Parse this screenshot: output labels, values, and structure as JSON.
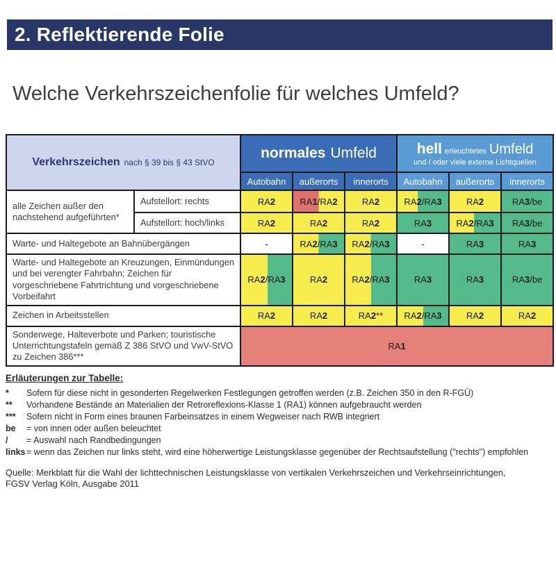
{
  "page": {
    "title_bar": "2. Reflektierende Folie",
    "subtitle": "Welche Verkehrszeichenfolie für welches Umfeld?"
  },
  "colors": {
    "navy_bar": "#293768",
    "corner_bg": "#CDD6EE",
    "normal_blue": "#3A6DB5",
    "hell_blue": "#5B9BD5",
    "y": "#F6EC4D",
    "g": "#54BA8C",
    "r": "#E06F6F",
    "rr": "#E6807A",
    "w": "#FFFFFF"
  },
  "table": {
    "corner": {
      "bold": "Verkehrszeichen",
      "rest": "nach § 39 bis § 43 StVO"
    },
    "groups": [
      {
        "bold": "normales",
        "rest": "Umfeld"
      },
      {
        "bold": "hell",
        "small": "erleuchtetes",
        "big": "Umfeld",
        "line2": "und / oder viele externe Lichtquellen"
      }
    ],
    "columns": [
      "Autobahn",
      "außerorts",
      "innerorts",
      "Autobahn",
      "außerorts",
      "innerorts"
    ],
    "rows": [
      {
        "label": "alle Zeichen außer den nachstehend aufgeführten*",
        "sublabel": "Aufstellort: rechts",
        "cells": [
          {
            "t": "RA2",
            "bg": "y"
          },
          {
            "t": "RA1/RA2",
            "bg": "r|y",
            "split": 0.5
          },
          {
            "t": "RA2",
            "bg": "y"
          },
          {
            "t": "RA2/RA3",
            "bg": "y|g",
            "split": 0.4
          },
          {
            "t": "RA2",
            "bg": "y"
          },
          {
            "t": "RA3/be",
            "bg": "g"
          }
        ]
      },
      {
        "sublabel": "Aufstellort: hoch/links",
        "cells": [
          {
            "t": "RA2",
            "bg": "y"
          },
          {
            "t": "RA2",
            "bg": "y"
          },
          {
            "t": "RA2",
            "bg": "y"
          },
          {
            "t": "RA3",
            "bg": "g"
          },
          {
            "t": "RA2/RA3",
            "bg": "y|g",
            "split": 0.48
          },
          {
            "t": "RA3/be",
            "bg": "g"
          }
        ]
      },
      {
        "label": "Warte- und Haltegebote an Bahnübergängen",
        "cells": [
          {
            "t": "-",
            "bg": "w"
          },
          {
            "t": "RA2/RA3",
            "bg": "y|g",
            "split": 0.5
          },
          {
            "t": "RA2/RA3",
            "bg": "y|g",
            "split": 0.5
          },
          {
            "t": "-",
            "bg": "w"
          },
          {
            "t": "RA3",
            "bg": "g"
          },
          {
            "t": "RA3",
            "bg": "g"
          }
        ]
      },
      {
        "label": "Warte- und Haltegebote an Kreuzungen, Einmündungen und bei verengter Fahrbahn; Zeichen für vorgeschriebene Fahrtrichtung und vorgeschriebene Vorbeifahrt",
        "cells": [
          {
            "t": "RA2/RA3",
            "bg": "y|g",
            "split": 0.52
          },
          {
            "t": "RA2",
            "bg": "y"
          },
          {
            "t": "RA2/RA3",
            "bg": "y|g",
            "split": 0.51
          },
          {
            "t": "RA3",
            "bg": "g"
          },
          {
            "t": "RA3",
            "bg": "g"
          },
          {
            "t": "RA3/be",
            "bg": "g"
          }
        ]
      },
      {
        "label": "Zeichen in Arbeitsstellen",
        "cells": [
          {
            "t": "RA2",
            "bg": "y"
          },
          {
            "t": "RA2",
            "bg": "y"
          },
          {
            "t": "RA2**",
            "bg": "y"
          },
          {
            "t": "RA2/RA3",
            "bg": "y|g",
            "split": 0.51
          },
          {
            "t": "RA2",
            "bg": "y"
          },
          {
            "t": "RA2",
            "bg": "y"
          }
        ]
      },
      {
        "label": "Sonderwege, Halteverbote und Parken; touristische Unterrichtungstafeln gemäß Z 386 StVO und VwV-StVO zu Zeichen 386***",
        "span_cell": {
          "t": "RA1",
          "bg": "rr"
        }
      }
    ]
  },
  "notes": {
    "heading": "Erläuterungen zur Tabelle:",
    "items": [
      {
        "marker": "*",
        "text": "Sofern für diese nicht in gesonderten Regelwerken Festlegungen getroffen werden (z.B. Zeichen 350 in den R-FGÜ)"
      },
      {
        "marker": "**",
        "text": "Vorhandene Bestände an Materialien der Retroreflexions-Klasse 1 (RA1) können aufgebraucht werden"
      },
      {
        "marker": "***",
        "text": "Sofern nicht in Form eines braunen Farbeinsatzes in einem Wegweiser nach RWB integriert"
      },
      {
        "marker": "be",
        "text": "= von innen oder außen beleuchtet"
      },
      {
        "marker": "/",
        "text": "= Auswahl nach Randbedingungen"
      },
      {
        "marker": "links",
        "text": "= wenn das Zeichen nur links steht, wird eine höherwertige Leistungsklasse gegenüber der Rechtsaufstellung (\"rechts\") empfohlen"
      }
    ],
    "source_line1": "Quelle: Merkblatt für die Wahl der lichttechnischen Leistungsklasse von vertikalen Verkehrszeichen und Verkehrseinrichtungen,",
    "source_line2": "FGSV Verlag Köln, Ausgabe 2011"
  }
}
